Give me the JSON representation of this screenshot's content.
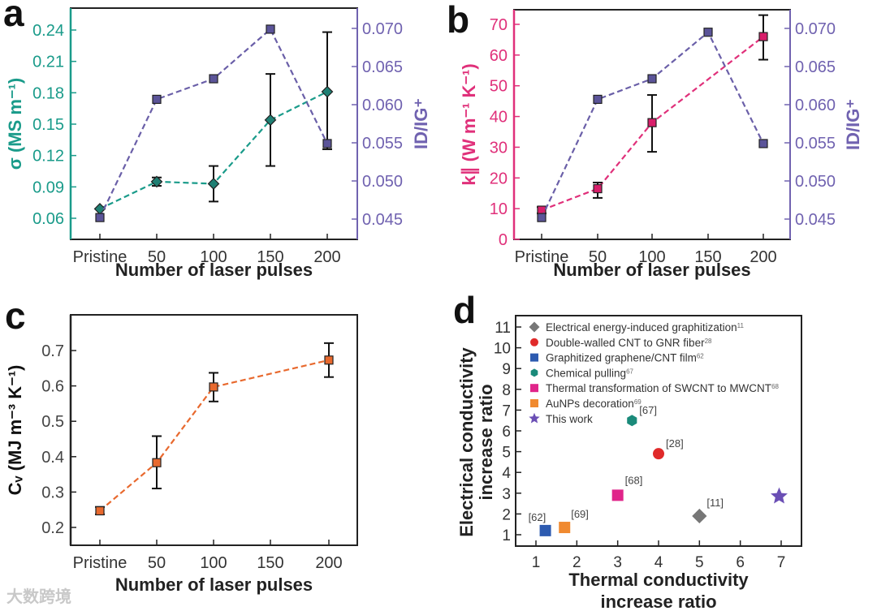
{
  "watermark": "大数跨境",
  "chart_data": [
    {
      "panel": "a",
      "type": "line",
      "categories": [
        "Pristine",
        "50",
        "100",
        "150",
        "200"
      ],
      "xlabel": "Number of laser pulses",
      "ylabel_left": "σ (MS m⁻¹)",
      "ylabel_right": "ID/IG⁺",
      "yticks_left": [
        "0.06",
        "0.09",
        "0.12",
        "0.15",
        "0.18",
        "0.21",
        "0.24"
      ],
      "yticks_right": [
        "0.045",
        "0.050",
        "0.055",
        "0.060",
        "0.065",
        "0.070"
      ],
      "left_color": "#1a9b8a",
      "right_color": "#7062b0",
      "series": [
        {
          "name": "σ",
          "axis": "left",
          "marker": "diamond",
          "color": "#1f7f73",
          "line_color": "#1a9b8a",
          "values": [
            0.069,
            0.095,
            0.093,
            0.154,
            0.181
          ],
          "err_low": [
            null,
            0.091,
            0.076,
            0.11,
            0.126
          ],
          "err_high": [
            null,
            0.099,
            0.11,
            0.198,
            0.238
          ]
        },
        {
          "name": "ID/IG+",
          "axis": "right",
          "marker": "square",
          "color": "#5b5499",
          "line_color": "#6a5fa8",
          "values": [
            0.0452,
            0.0607,
            0.0634,
            0.0699,
            0.0549
          ],
          "err_low": [
            null,
            null,
            null,
            null,
            null
          ],
          "err_high": [
            null,
            null,
            null,
            null,
            null
          ]
        }
      ]
    },
    {
      "panel": "b",
      "type": "line",
      "categories": [
        "Pristine",
        "50",
        "100",
        "150",
        "200"
      ],
      "xlabel": "Number of laser pulses",
      "ylabel_left": "k∥ (W m⁻¹ K⁻¹)",
      "ylabel_right": "ID/IG⁺",
      "yticks_left": [
        "0",
        "10",
        "20",
        "30",
        "40",
        "50",
        "60",
        "70"
      ],
      "yticks_right": [
        "0.045",
        "0.050",
        "0.055",
        "0.060",
        "0.065",
        "0.070"
      ],
      "left_color": "#e0307a",
      "right_color": "#7062b0",
      "series": [
        {
          "name": "k∥",
          "axis": "left",
          "marker": "square",
          "color": "#d81e6a",
          "line_color": "#e0307a",
          "values": [
            9.5,
            16.5,
            38,
            null,
            66
          ],
          "err_low": [
            8.5,
            13.5,
            28.5,
            null,
            58.5
          ],
          "err_high": [
            10.5,
            18.5,
            47,
            null,
            73
          ]
        },
        {
          "name": "ID/IG+",
          "axis": "right",
          "marker": "square",
          "color": "#5b5499",
          "line_color": "#6a5fa8",
          "values": [
            0.0452,
            0.0607,
            0.0634,
            0.0695,
            0.0549
          ],
          "err_low": [
            null,
            null,
            null,
            null,
            null
          ],
          "err_high": [
            null,
            null,
            null,
            null,
            null
          ]
        }
      ]
    },
    {
      "panel": "c",
      "type": "line",
      "categories": [
        "Pristine",
        "50",
        "100",
        "150",
        "200"
      ],
      "xlabel": "Number of laser pulses",
      "ylabel_left": "Cᵥ (MJ m⁻³ K⁻¹)",
      "yticks_left": [
        "0.2",
        "0.3",
        "0.4",
        "0.5",
        "0.6",
        "0.7"
      ],
      "left_color": "#222222",
      "series": [
        {
          "name": "Cv",
          "axis": "left",
          "marker": "square",
          "color": "#e8692e",
          "line_color": "#e8692e",
          "values": [
            0.247,
            0.383,
            0.597,
            null,
            0.673
          ],
          "err_low": [
            0.237,
            0.31,
            0.556,
            null,
            0.625
          ],
          "err_high": [
            0.258,
            0.458,
            0.637,
            null,
            0.721
          ]
        }
      ]
    },
    {
      "panel": "d",
      "type": "scatter",
      "xlabel": [
        "Thermal conductivity",
        "increase ratio"
      ],
      "ylabel": [
        "Electrical conductivity",
        "increase ratio"
      ],
      "xticks": [
        "1",
        "2",
        "3",
        "4",
        "5",
        "6",
        "7"
      ],
      "yticks": [
        "1",
        "2",
        "3",
        "4",
        "5",
        "6",
        "7",
        "8",
        "9",
        "10",
        "11"
      ],
      "xlim": [
        0.5,
        7.5
      ],
      "ylim": [
        0.5,
        11.5
      ],
      "series": [
        {
          "name": "Electrical energy-induced graphitization",
          "ref": "11",
          "label": "[11]",
          "marker": "diamond",
          "color": "#777777",
          "x": 5.0,
          "y": 1.9
        },
        {
          "name": "Double-walled CNT to GNR fiber",
          "ref": "28",
          "label": "[28]",
          "marker": "circle",
          "color": "#e02a2a",
          "x": 4.0,
          "y": 4.9
        },
        {
          "name": "Graphitized graphene/CNT film",
          "ref": "62",
          "label": "[62]",
          "marker": "square",
          "color": "#2d5bb0",
          "x": 1.23,
          "y": 1.2
        },
        {
          "name": "Chemical pulling",
          "ref": "67",
          "label": "[67]",
          "marker": "hexagon",
          "color": "#1a8a7a",
          "x": 3.35,
          "y": 6.5
        },
        {
          "name": "Thermal transformation of SWCNT to MWCNT",
          "ref": "68",
          "label": "[68]",
          "marker": "square",
          "color": "#e0258a",
          "x": 3.0,
          "y": 2.9
        },
        {
          "name": "AuNPs decoration",
          "ref": "69",
          "label": "[69]",
          "marker": "square",
          "color": "#f08a30",
          "x": 1.7,
          "y": 1.35
        },
        {
          "name": "This work",
          "ref": "",
          "label": "",
          "marker": "star",
          "color": "#6b4fb5",
          "x": 6.95,
          "y": 2.85
        }
      ]
    }
  ]
}
